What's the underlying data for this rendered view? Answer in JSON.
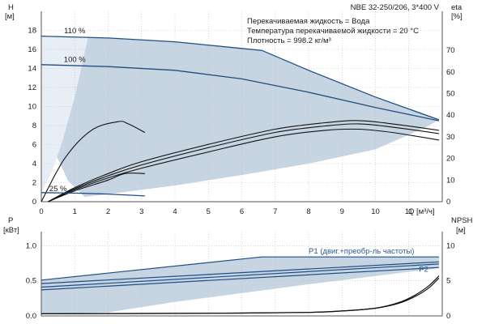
{
  "colors": {
    "region": "#c7d5e3",
    "region_light": "#e7eef6",
    "pump_curve": "#1f4e85",
    "eff_curve": "#111111",
    "power_curve": "#1f4e85",
    "npsh_curve": "#111111",
    "grid": "#bdbdbd",
    "axis": "#555555"
  },
  "model": "NBE 32-250/206, 3*400 V",
  "info": [
    "Перекачиваемая жидкость = Вода",
    "Температура перекачиваемой жидкости = 20 °C",
    "Плотность = 998.2 кг/м³"
  ],
  "chart_data": [
    {
      "type": "line",
      "panel": "head-efficiency",
      "xlabel": "Q [м³/ч]",
      "ylabel_left": [
        "H",
        "[м]"
      ],
      "ylabel_right": [
        "eta",
        "[%]"
      ],
      "xlim": [
        0,
        12
      ],
      "ylim_left": [
        0,
        20
      ],
      "ylim_right": [
        0,
        88
      ],
      "x_ticks": [
        0,
        1,
        2,
        3,
        4,
        5,
        6,
        7,
        8,
        9,
        10,
        11
      ],
      "y_ticks_left": [
        0,
        2,
        4,
        6,
        8,
        10,
        12,
        14,
        16,
        18
      ],
      "y_ticks_right": [
        0,
        10,
        20,
        30,
        40,
        50,
        60,
        70
      ],
      "grid": true,
      "head_curves": [
        {
          "name": "110 %",
          "x": [
            0,
            2,
            4,
            6,
            6.6,
            8,
            10,
            11.9
          ],
          "y": [
            17.4,
            17.2,
            16.8,
            16.1,
            15.9,
            13.8,
            11.0,
            8.6
          ]
        },
        {
          "name": "100 %",
          "x": [
            0,
            2,
            4,
            6,
            8,
            10,
            11.9
          ],
          "y": [
            14.4,
            14.2,
            13.8,
            12.9,
            11.5,
            9.9,
            8.5
          ]
        },
        {
          "name": "25 %",
          "x": [
            0,
            1,
            2,
            3.1
          ],
          "y": [
            0.95,
            0.9,
            0.8,
            0.6
          ]
        }
      ],
      "efficiency_curves_eta": [
        {
          "x": [
            0,
            0.7,
            1.5,
            2.3,
            2.6,
            3.1
          ],
          "y": [
            0,
            20,
            33,
            37,
            36,
            32
          ]
        },
        {
          "x": [
            0.2,
            1,
            2,
            3,
            5,
            7,
            8.5,
            9.5,
            10.5,
            11.9
          ],
          "y": [
            0,
            6.5,
            13,
            18.5,
            26.5,
            33.5,
            36.5,
            37.5,
            36,
            33
          ]
        },
        {
          "x": [
            0.2,
            1,
            2,
            3,
            5,
            7,
            8.5,
            9.5,
            10.5,
            11.9
          ],
          "y": [
            0,
            6,
            12,
            17,
            25,
            32,
            35,
            36,
            34.5,
            31.5
          ]
        },
        {
          "x": [
            0.2,
            1,
            2,
            3,
            5,
            7,
            8.5,
            9.5,
            10.5,
            11.9
          ],
          "y": [
            0,
            5.5,
            11,
            15.5,
            23,
            30,
            33,
            33.5,
            32,
            28.5
          ]
        },
        {
          "x": [
            0.2,
            1,
            2,
            2.5,
            3.1
          ],
          "y": [
            0,
            5,
            10,
            13,
            13
          ]
        }
      ],
      "operating_region": {
        "x": [
          0,
          2.0,
          4,
          6,
          6.6,
          8,
          10,
          11.9,
          11.9,
          11.5,
          10,
          8,
          6,
          4,
          2,
          1.3,
          0.8,
          0.3,
          0
        ],
        "y": [
          17.4,
          17.2,
          16.8,
          16.1,
          15.9,
          13.8,
          11.0,
          8.6,
          8.6,
          7.8,
          5.5,
          4.0,
          2.8,
          1.7,
          0.8,
          0.5,
          2.2,
          6,
          14.4
        ]
      },
      "operating_region_light": {
        "x": [
          0,
          1.4,
          1.0,
          0.6,
          0.3,
          0,
          0
        ],
        "y": [
          17.4,
          17.3,
          11.0,
          6.0,
          3.0,
          1.0,
          14.4
        ]
      },
      "annotations": [
        "110 %",
        "100 %",
        "25 %"
      ]
    },
    {
      "type": "line",
      "panel": "power-npsh",
      "ylabel_left": [
        "P",
        "[кВт]"
      ],
      "ylabel_right": [
        "NPSH",
        "[м]"
      ],
      "xlim": [
        0,
        12
      ],
      "ylim_left": [
        0,
        1.2
      ],
      "ylim_right": [
        0,
        12
      ],
      "y_ticks_left": [
        0,
        0.5,
        1.0
      ],
      "y_ticks_left_labels": [
        "0.0",
        "0.5",
        "1.0"
      ],
      "y_ticks_right": [
        0,
        5,
        10
      ],
      "grid": true,
      "series": [
        {
          "name": "P1 (двиг.+преобр-ль частоты)",
          "x": [
            0,
            6.6,
            11.9
          ],
          "y": [
            0.51,
            0.84,
            0.84
          ]
        },
        {
          "name": "",
          "x": [
            0,
            11.9
          ],
          "y": [
            0.46,
            0.77
          ]
        },
        {
          "name": "P2",
          "x": [
            0,
            11.9
          ],
          "y": [
            0.41,
            0.74
          ]
        },
        {
          "name": "",
          "x": [
            0,
            11.9
          ],
          "y": [
            0.37,
            0.69
          ]
        }
      ],
      "npsh_curves": [
        {
          "x": [
            0,
            3,
            6,
            8,
            9,
            10,
            10.7,
            11.2,
            11.6,
            11.9
          ],
          "y": [
            0.3,
            0.35,
            0.4,
            0.5,
            0.7,
            1.1,
            1.8,
            2.8,
            4.0,
            5.4
          ]
        },
        {
          "x": [
            0,
            3,
            6,
            8,
            9,
            10,
            10.7,
            11.2,
            11.6,
            11.9
          ],
          "y": [
            0.3,
            0.35,
            0.4,
            0.5,
            0.7,
            1.1,
            1.9,
            3.0,
            4.3,
            5.7
          ]
        }
      ],
      "operating_region": {
        "x": [
          0,
          6.6,
          11.9,
          11.9,
          8,
          4,
          2,
          0
        ],
        "y": [
          0.51,
          0.84,
          0.84,
          0.68,
          0.45,
          0.2,
          0.05,
          0.03
        ]
      },
      "annotations": [
        "P1 (двиг.+преобр-ль частоты)",
        "P2"
      ]
    }
  ]
}
